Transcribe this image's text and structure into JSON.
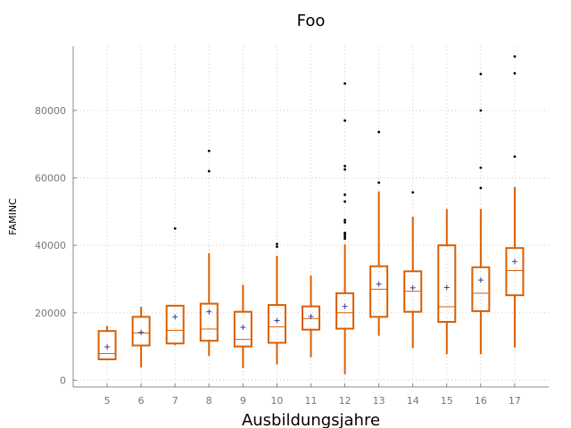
{
  "chart_data": {
    "type": "box",
    "title": "Foo",
    "xlabel": "Ausbildungsjahre",
    "ylabel": "FAMINC",
    "xlim": [
      4,
      18
    ],
    "ylim": [
      -2000,
      99000
    ],
    "grid": true,
    "box_color": "#d95f02",
    "mean_marker_color": "#3b3b9a",
    "y_ticks": [
      0,
      20000,
      40000,
      60000,
      80000
    ],
    "y_tick_labels": [
      "0",
      "20000",
      "40000",
      "60000",
      "80000"
    ],
    "categories": [
      "5",
      "6",
      "7",
      "8",
      "9",
      "10",
      "11",
      "12",
      "13",
      "14",
      "15",
      "16",
      "17"
    ],
    "boxes": [
      {
        "x": 5,
        "whisker_low": 6200,
        "q1": 6200,
        "median": 7900,
        "q3": 14600,
        "whisker_high": 16100,
        "mean": 9900,
        "outliers": []
      },
      {
        "x": 6,
        "whisker_low": 3800,
        "q1": 10300,
        "median": 14000,
        "q3": 18800,
        "whisker_high": 21800,
        "mean": 14200,
        "outliers": []
      },
      {
        "x": 7,
        "whisker_low": 10400,
        "q1": 10900,
        "median": 14800,
        "q3": 22100,
        "whisker_high": 22100,
        "mean": 18800,
        "outliers": [
          45000
        ]
      },
      {
        "x": 8,
        "whisker_low": 7200,
        "q1": 11700,
        "median": 15200,
        "q3": 22700,
        "whisker_high": 37700,
        "mean": 20300,
        "outliers": [
          62000,
          68000
        ]
      },
      {
        "x": 9,
        "whisker_low": 3600,
        "q1": 10000,
        "median": 12100,
        "q3": 20300,
        "whisker_high": 28300,
        "mean": 15700,
        "outliers": []
      },
      {
        "x": 10,
        "whisker_low": 4700,
        "q1": 11100,
        "median": 15800,
        "q3": 22300,
        "whisker_high": 36900,
        "mean": 17700,
        "outliers": [
          39600,
          40400
        ]
      },
      {
        "x": 11,
        "whisker_low": 6800,
        "q1": 15000,
        "median": 18300,
        "q3": 21900,
        "whisker_high": 31000,
        "mean": 18900,
        "outliers": []
      },
      {
        "x": 12,
        "whisker_low": 1800,
        "q1": 15300,
        "median": 20000,
        "q3": 25800,
        "whisker_high": 40300,
        "mean": 21900,
        "outliers": [
          42000,
          42600,
          43200,
          43700,
          46800,
          47500,
          53000,
          55000,
          62500,
          63500,
          77000,
          88000
        ]
      },
      {
        "x": 13,
        "whisker_low": 13200,
        "q1": 18800,
        "median": 27000,
        "q3": 33800,
        "whisker_high": 56000,
        "mean": 28500,
        "outliers": [
          58600,
          73600
        ]
      },
      {
        "x": 14,
        "whisker_low": 9500,
        "q1": 20300,
        "median": 26400,
        "q3": 32300,
        "whisker_high": 48500,
        "mean": 27400,
        "outliers": [
          55700
        ]
      },
      {
        "x": 15,
        "whisker_low": 7700,
        "q1": 17300,
        "median": 21800,
        "q3": 40000,
        "whisker_high": 50800,
        "mean": 27500,
        "outliers": []
      },
      {
        "x": 16,
        "whisker_low": 7700,
        "q1": 20500,
        "median": 25800,
        "q3": 33500,
        "whisker_high": 50800,
        "mean": 29700,
        "outliers": [
          57000,
          63000,
          80000,
          90800
        ]
      },
      {
        "x": 17,
        "whisker_low": 9700,
        "q1": 25200,
        "median": 32500,
        "q3": 39200,
        "whisker_high": 57300,
        "mean": 35200,
        "outliers": [
          66300,
          91000,
          96000
        ]
      }
    ]
  }
}
